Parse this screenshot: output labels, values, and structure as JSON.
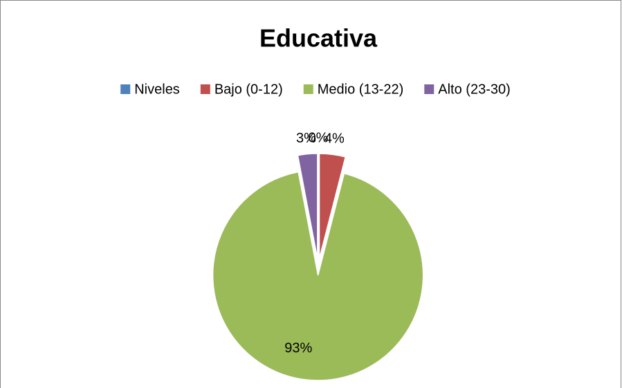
{
  "chart_data": {
    "type": "pie",
    "title": "Educativa",
    "categories": [
      "Niveles",
      "Bajo (0-12)",
      "Medio (13-22)",
      "Alto (23-30)"
    ],
    "values": [
      0,
      4,
      93,
      3
    ],
    "value_labels": [
      "0%",
      "4%",
      "93%",
      "3%"
    ],
    "colors": [
      "#4f81bd",
      "#c0504d",
      "#9bbb59",
      "#8064a2"
    ],
    "legend": "top"
  }
}
